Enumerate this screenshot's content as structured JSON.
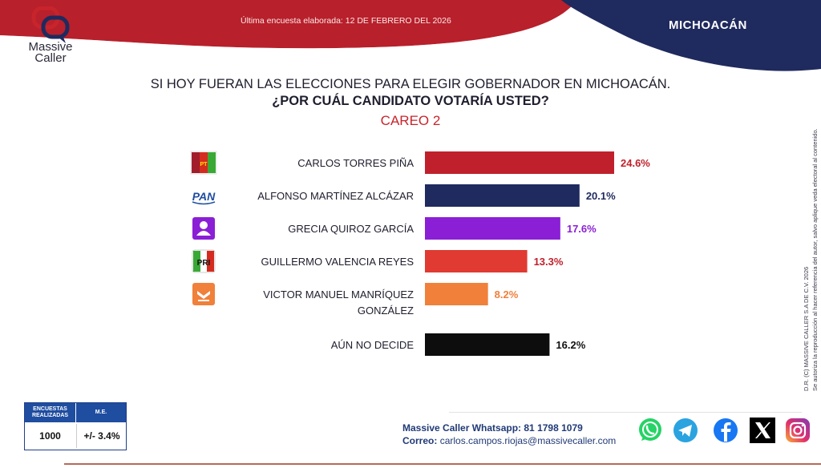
{
  "header": {
    "logo_text": "Massive",
    "logo_text2": "Caller",
    "survey_date": "Última encuesta elaborada: 12 DE FEBRERO DEL 2026",
    "state": "MICHOACÁN",
    "colors": {
      "red": "#b8202b",
      "navy": "#1f2a5e"
    }
  },
  "question": {
    "line1": "SI HOY FUERAN LAS ELECCIONES PARA ELEGIR GOBERNADOR EN MICHOACÁN.",
    "line2": "¿POR CUÁL CANDIDATO VOTARÍA USTED?",
    "careo": "CAREO 2"
  },
  "chart_data": {
    "type": "bar",
    "orientation": "horizontal",
    "categories": [
      "CARLOS TORRES PIÑA",
      "ALFONSO MARTÍNEZ ALCÁZAR",
      "GRECIA QUIROZ GARCÍA",
      "GUILLERMO VALENCIA REYES",
      "VICTOR MANUEL MANRÍQUEZ GONZÁLEZ",
      "AÚN NO DECIDE"
    ],
    "label_lines": [
      [
        "CARLOS TORRES PIÑA"
      ],
      [
        "ALFONSO MARTÍNEZ ALCÁZAR"
      ],
      [
        "GRECIA QUIROZ GARCÍA"
      ],
      [
        "GUILLERMO VALENCIA REYES"
      ],
      [
        "VICTOR MANUEL MANRÍQUEZ",
        "GONZÁLEZ"
      ],
      [
        "AÚN NO DECIDE"
      ]
    ],
    "values": [
      24.6,
      20.1,
      17.6,
      13.3,
      8.2,
      16.2
    ],
    "value_labels": [
      "24.6%",
      "20.1%",
      "17.6%",
      "13.3%",
      "8.2%",
      "16.2%"
    ],
    "colors": [
      "#c0202c",
      "#1f2a5e",
      "#8a1fd6",
      "#e03a32",
      "#f0803a",
      "#0d0d0d"
    ],
    "label_colors": [
      "#c0202c",
      "#1f2a5e",
      "#8a1fd6",
      "#c0202c",
      "#f0803a",
      "#111111"
    ],
    "party_icons": [
      "morena-pt-pvem-logo-icon",
      "pan-logo-icon",
      "independent-candidate-icon",
      "pri-logo-icon",
      "movimiento-ciudadano-logo-icon",
      null
    ],
    "party_texts": [
      "PT",
      "PAN",
      "",
      "PRI",
      "",
      ""
    ],
    "xlim": [
      0,
      24.6
    ]
  },
  "side_note": {
    "line1": "D.R. (C) MASSIVE CALLER S.A DE C.V. 2026",
    "line2": "Se autoriza la reproducción al hacer referencia del autor, salvo aplique veda electoral al contenido."
  },
  "survey_box": {
    "head_left": "ENCUESTAS REALIZADAS",
    "head_right": "M.E.",
    "surveys": "1000",
    "margin": "+/- 3.4%"
  },
  "contact": {
    "whatsapp": "Massive Caller Whatsapp: 81 1798 1079",
    "email_label": "Correo:",
    "email": "carlos.campos.riojas@massivecaller.com"
  },
  "social_icons": [
    "whatsapp-icon",
    "telegram-icon",
    "facebook-icon",
    "x-icon",
    "instagram-icon"
  ]
}
